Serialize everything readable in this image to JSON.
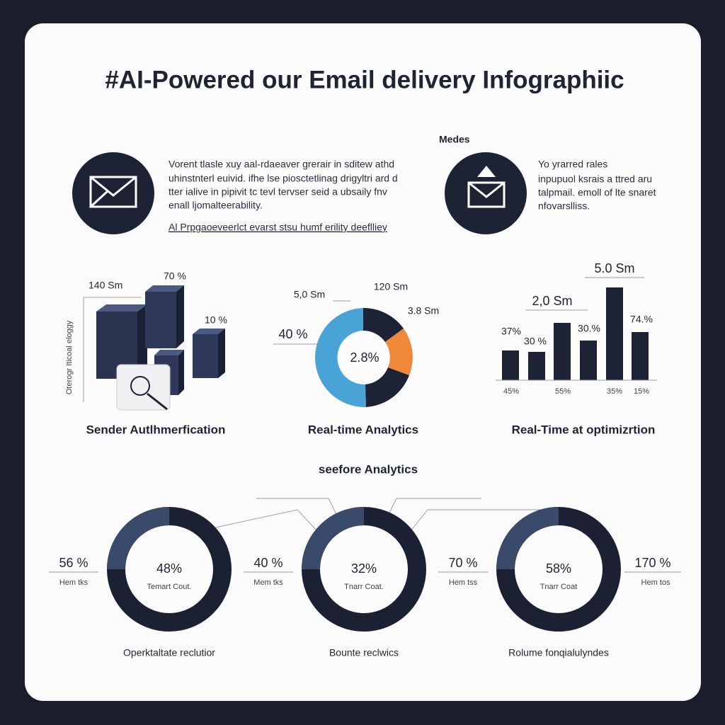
{
  "title": "#AI-Powered our Email delivery Infographiic",
  "top": {
    "heading": "Medes",
    "left_text": [
      "Vorent tlasle xuy aal-rdaeaver grerair in sditew athd",
      "uhinstnterl euivid. ifhe lse piosctetlinag drigyltri ard d",
      "tter ialive in pipivit tc tevl tervser seid a ubsaily fnv",
      "enall ljomalteerability."
    ],
    "link": "Al Prpgaoeveerlct evarst stsu humf erility deeflliey",
    "right_text": [
      "Yo yrarred rales",
      "inpupuol ksrais a ttred aru",
      "talpmail. emoll of lte snaret",
      "nfovarslliss."
    ]
  },
  "panels": [
    {
      "labels": [
        "140 Sm",
        "70 %",
        "10 %"
      ],
      "axis": "Oterogr Iticoal eloggy",
      "caption": "Sender Autlhmerfication"
    },
    {
      "labels": [
        "5,0 Sm",
        "120 Sm",
        "3.8 Sm",
        "40 %"
      ],
      "center": "2.8%",
      "caption": "Real-time Analytics"
    },
    {
      "labels": [
        "37%",
        "30 %",
        "2,0 Sm",
        "30.%",
        "5.0 Sm",
        "74.%"
      ],
      "axis_labels": [
        "45%",
        "55%",
        "35%",
        "15%"
      ],
      "caption": "Real-Time at optimizrtion"
    }
  ],
  "bottom": {
    "heading": "seefore Analytics",
    "rings": [
      {
        "center": "48%",
        "sub": "Temart Cout.",
        "side_value": "56 %",
        "side_label": "Hem tks",
        "caption": "Operktaltate reclutior"
      },
      {
        "center": "32%",
        "sub": "Tnarr Coat.",
        "side_value": "40 %",
        "side_label": "Mem tks",
        "caption": "Bounte reclwics"
      },
      {
        "center": "58%",
        "sub": "Tnarr Coat",
        "side_value": "70 %",
        "side_label": "Hem tss",
        "caption": "Rolume fonqialulyndes"
      }
    ],
    "end_value": "170 %",
    "end_label": "Hem tos"
  }
}
